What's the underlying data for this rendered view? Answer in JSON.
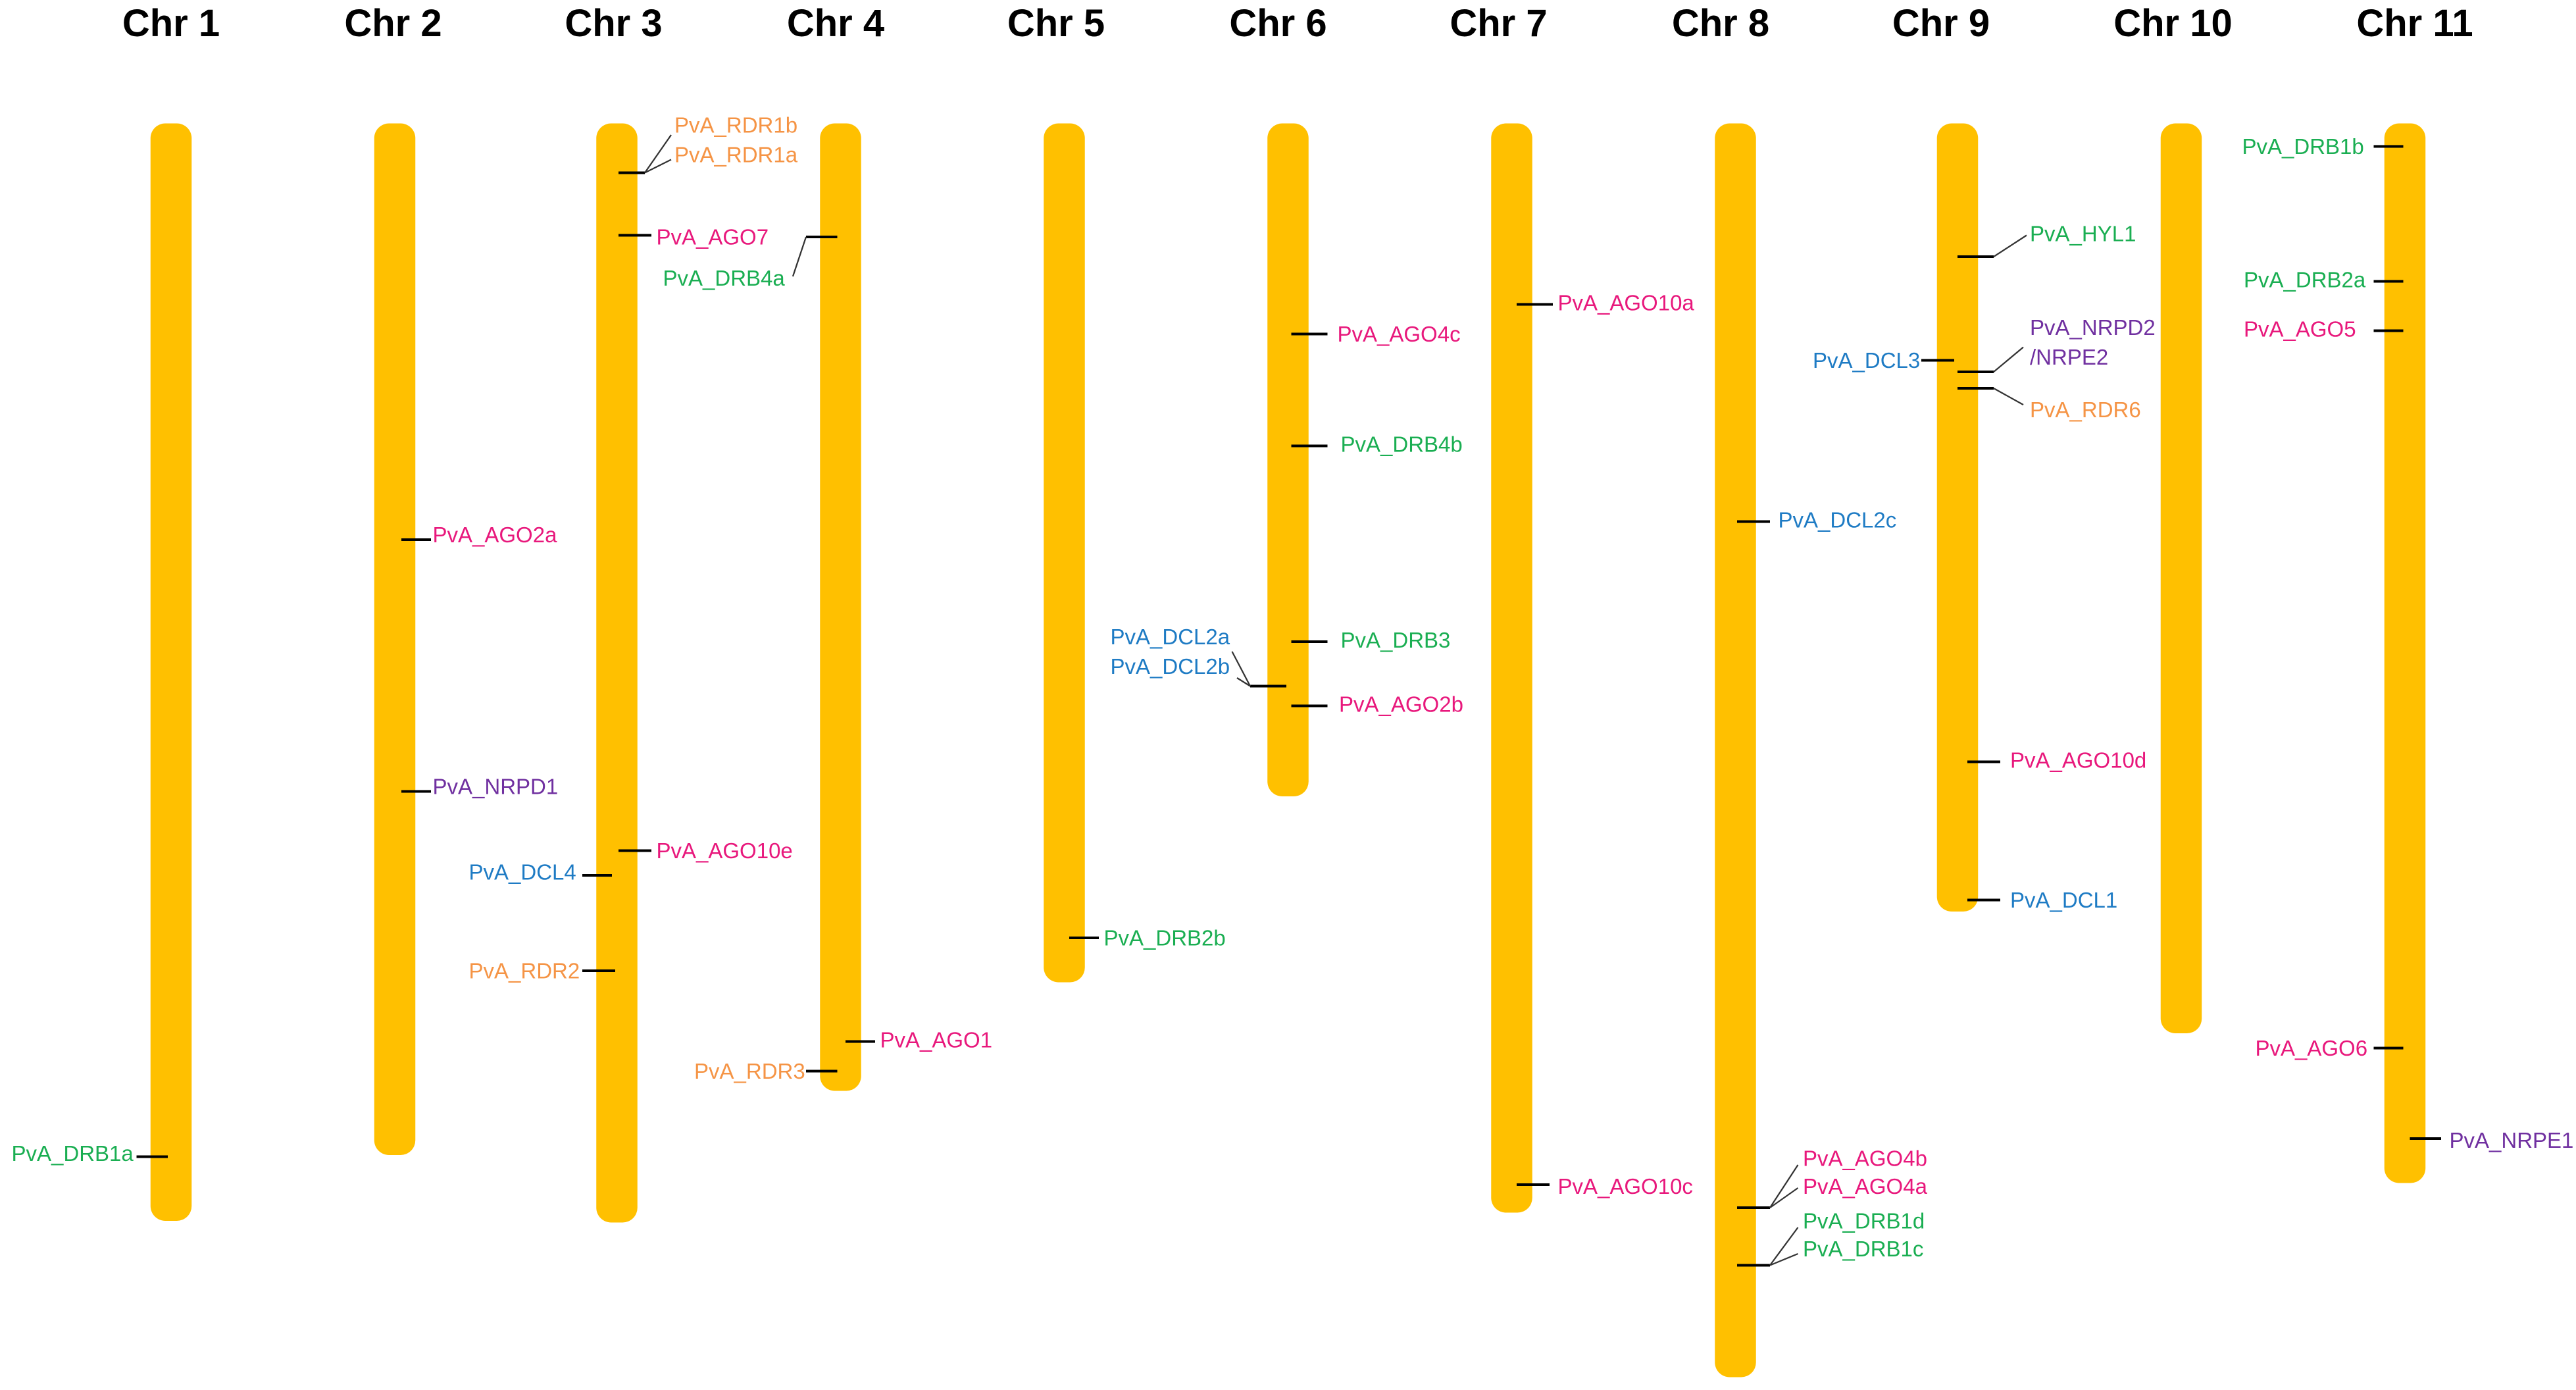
{
  "colors": {
    "chromosome": "#FFC000",
    "tick": "#000000",
    "AGO": "#E8187C",
    "DRB": "#1AAE52",
    "DCL": "#1E7BC4",
    "RDR": "#F59445",
    "NRP": "#7030A0",
    "HYL": "#1AAE52"
  },
  "chromosomes": [
    {
      "id": "chr1",
      "title": "Chr 1"
    },
    {
      "id": "chr2",
      "title": "Chr 2"
    },
    {
      "id": "chr3",
      "title": "Chr 3"
    },
    {
      "id": "chr4",
      "title": "Chr 4"
    },
    {
      "id": "chr5",
      "title": "Chr 5"
    },
    {
      "id": "chr6",
      "title": "Chr 6"
    },
    {
      "id": "chr7",
      "title": "Chr 7"
    },
    {
      "id": "chr8",
      "title": "Chr 8"
    },
    {
      "id": "chr9",
      "title": "Chr 9"
    },
    {
      "id": "chr10",
      "title": "Chr 10"
    },
    {
      "id": "chr11",
      "title": "Chr 11"
    }
  ],
  "genes": [
    {
      "id": "g-drb1a",
      "chr": "chr1",
      "label": "PvA_DRB1a",
      "family": "DRB"
    },
    {
      "id": "g-ago2a",
      "chr": "chr2",
      "label": "PvA_AGO2a",
      "family": "AGO"
    },
    {
      "id": "g-nrpd1",
      "chr": "chr2",
      "label": "PvA_NRPD1",
      "family": "NRP"
    },
    {
      "id": "g-rdr1b",
      "chr": "chr3",
      "label": "PvA_RDR1b",
      "family": "RDR"
    },
    {
      "id": "g-rdr1a",
      "chr": "chr3",
      "label": "PvA_RDR1a",
      "family": "RDR"
    },
    {
      "id": "g-ago7",
      "chr": "chr3",
      "label": "PvA_AGO7",
      "family": "AGO"
    },
    {
      "id": "g-ago10e",
      "chr": "chr3",
      "label": "PvA_AGO10e",
      "family": "AGO"
    },
    {
      "id": "g-dcl4",
      "chr": "chr3",
      "label": "PvA_DCL4",
      "family": "DCL"
    },
    {
      "id": "g-rdr2",
      "chr": "chr3",
      "label": "PvA_RDR2",
      "family": "RDR"
    },
    {
      "id": "g-drb4a",
      "chr": "chr4",
      "label": "PvA_DRB4a",
      "family": "DRB"
    },
    {
      "id": "g-ago1",
      "chr": "chr4",
      "label": "PvA_AGO1",
      "family": "AGO"
    },
    {
      "id": "g-rdr3",
      "chr": "chr4",
      "label": "PvA_RDR3",
      "family": "RDR"
    },
    {
      "id": "g-drb2b",
      "chr": "chr5",
      "label": "PvA_DRB2b",
      "family": "DRB"
    },
    {
      "id": "g-ago4c",
      "chr": "chr6",
      "label": "PvA_AGO4c",
      "family": "AGO"
    },
    {
      "id": "g-drb4b",
      "chr": "chr6",
      "label": "PvA_DRB4b",
      "family": "DRB"
    },
    {
      "id": "g-drb3",
      "chr": "chr6",
      "label": "PvA_DRB3",
      "family": "DRB"
    },
    {
      "id": "g-dcl2a",
      "chr": "chr6",
      "label": "PvA_DCL2a",
      "family": "DCL"
    },
    {
      "id": "g-dcl2b",
      "chr": "chr6",
      "label": "PvA_DCL2b",
      "family": "DCL"
    },
    {
      "id": "g-ago2b",
      "chr": "chr6",
      "label": "PvA_AGO2b",
      "family": "AGO"
    },
    {
      "id": "g-ago10a",
      "chr": "chr7",
      "label": "PvA_AGO10a",
      "family": "AGO"
    },
    {
      "id": "g-ago10c",
      "chr": "chr7",
      "label": "PvA_AGO10c",
      "family": "AGO"
    },
    {
      "id": "g-dcl2c",
      "chr": "chr8",
      "label": "PvA_DCL2c",
      "family": "DCL"
    },
    {
      "id": "g-ago4b",
      "chr": "chr8",
      "label": "PvA_AGO4b",
      "family": "AGO"
    },
    {
      "id": "g-ago4a",
      "chr": "chr8",
      "label": "PvA_AGO4a",
      "family": "AGO"
    },
    {
      "id": "g-drb1d",
      "chr": "chr8",
      "label": "PvA_DRB1d",
      "family": "DRB"
    },
    {
      "id": "g-drb1c",
      "chr": "chr8",
      "label": "PvA_DRB1c",
      "family": "DRB"
    },
    {
      "id": "g-hyl1",
      "chr": "chr9",
      "label": "PvA_HYL1",
      "family": "HYL"
    },
    {
      "id": "g-dcl3",
      "chr": "chr9",
      "label": "PvA_DCL3",
      "family": "DCL"
    },
    {
      "id": "g-nrpd2",
      "chr": "chr9",
      "label": "PvA_NRPD2",
      "family": "NRP"
    },
    {
      "id": "g-nrpe2",
      "chr": "chr9",
      "label": "/NRPE2",
      "family": "NRP"
    },
    {
      "id": "g-rdr6",
      "chr": "chr9",
      "label": "PvA_RDR6",
      "family": "RDR"
    },
    {
      "id": "g-ago10d",
      "chr": "chr9",
      "label": "PvA_AGO10d",
      "family": "AGO"
    },
    {
      "id": "g-dcl1",
      "chr": "chr9",
      "label": "PvA_DCL1",
      "family": "DCL"
    },
    {
      "id": "g-drb1b",
      "chr": "chr11",
      "label": "PvA_DRB1b",
      "family": "DRB"
    },
    {
      "id": "g-drb2a",
      "chr": "chr11",
      "label": "PvA_DRB2a",
      "family": "DRB"
    },
    {
      "id": "g-ago5",
      "chr": "chr11",
      "label": "PvA_AGO5",
      "family": "AGO"
    },
    {
      "id": "g-ago6",
      "chr": "chr11",
      "label": "PvA_AGO6",
      "family": "AGO"
    },
    {
      "id": "g-nrpe1",
      "chr": "chr11",
      "label": "PvA_NRPE1",
      "family": "NRP"
    }
  ]
}
